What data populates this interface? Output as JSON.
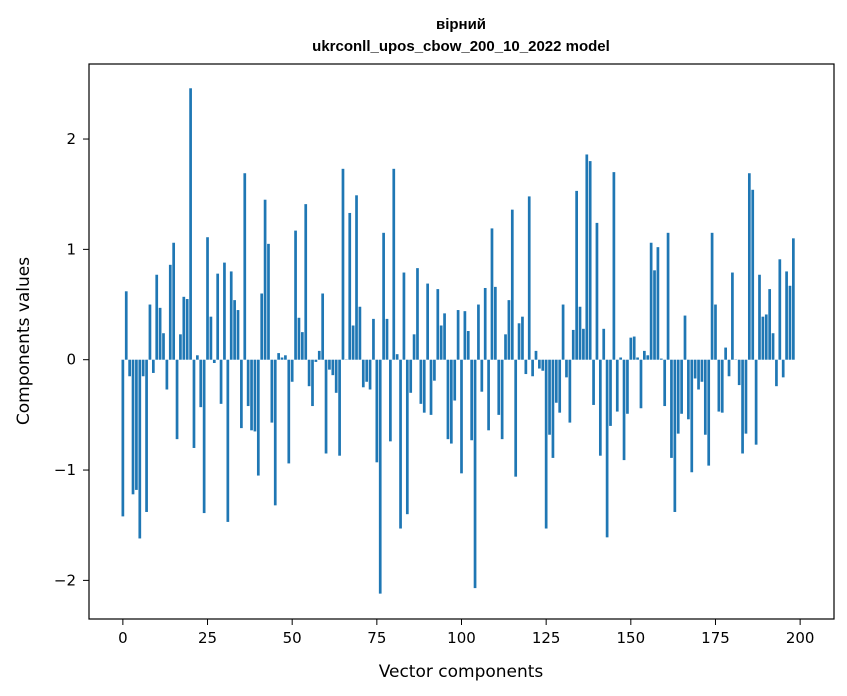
{
  "chart_data": {
    "type": "bar",
    "title_line1": "вірний",
    "title_line2": "ukrconll_upos_cbow_200_10_2022 model",
    "xlabel": "Vector components",
    "ylabel": "Components values",
    "xlim": [
      -10,
      210
    ],
    "ylim": [
      -2.35,
      2.68
    ],
    "x_ticks": [
      0,
      25,
      50,
      75,
      100,
      125,
      150,
      175,
      200
    ],
    "y_ticks": [
      -2,
      -1,
      0,
      1,
      2
    ],
    "y_tick_labels": [
      "−2",
      "−1",
      "0",
      "1",
      "2"
    ],
    "grid": false,
    "bar_color": "#1f77b4",
    "values": [
      -1.42,
      0.62,
      -0.15,
      -1.22,
      -1.18,
      -1.62,
      -0.15,
      -1.38,
      0.5,
      -0.12,
      0.77,
      0.47,
      0.24,
      -0.27,
      0.86,
      1.06,
      -0.72,
      0.23,
      0.57,
      0.55,
      2.46,
      -0.8,
      0.04,
      -0.43,
      -1.39,
      1.11,
      0.39,
      -0.03,
      0.78,
      -0.4,
      0.88,
      -1.47,
      0.8,
      0.54,
      0.45,
      -0.62,
      1.69,
      -0.42,
      -0.64,
      -0.65,
      -1.05,
      0.6,
      1.45,
      1.05,
      -0.57,
      -1.32,
      0.06,
      0.02,
      0.04,
      -0.94,
      -0.2,
      1.17,
      0.38,
      0.25,
      1.41,
      -0.24,
      -0.42,
      -0.02,
      0.08,
      0.6,
      -0.85,
      -0.09,
      -0.14,
      -0.3,
      -0.87,
      1.73,
      0.0,
      1.33,
      0.31,
      1.49,
      0.48,
      -0.25,
      -0.2,
      -0.27,
      0.37,
      -0.93,
      -2.12,
      1.15,
      0.37,
      -0.74,
      1.73,
      0.05,
      -1.53,
      0.79,
      -1.4,
      -0.3,
      0.23,
      0.83,
      -0.4,
      -0.48,
      0.69,
      -0.5,
      -0.19,
      0.64,
      0.31,
      0.42,
      -0.72,
      -0.76,
      -0.37,
      0.45,
      -1.03,
      0.44,
      0.26,
      -0.73,
      -2.07,
      0.5,
      -0.29,
      0.65,
      -0.64,
      1.19,
      0.66,
      -0.5,
      -0.72,
      0.23,
      0.54,
      1.36,
      -1.06,
      0.33,
      0.39,
      -0.13,
      1.48,
      -0.15,
      0.08,
      -0.08,
      -0.1,
      -1.53,
      -0.68,
      -0.89,
      -0.39,
      -0.48,
      0.5,
      -0.16,
      -0.57,
      0.27,
      1.53,
      0.48,
      0.28,
      1.86,
      1.8,
      -0.41,
      1.24,
      -0.87,
      0.28,
      -1.61,
      -0.6,
      1.7,
      -0.47,
      0.02,
      -0.91,
      -0.49,
      0.2,
      0.21,
      0.02,
      -0.44,
      0.08,
      0.04,
      1.06,
      0.81,
      1.02,
      0.01,
      -0.42,
      1.15,
      -0.89,
      -1.38,
      -0.67,
      -0.49,
      0.4,
      -0.54,
      -1.02,
      -0.17,
      -0.27,
      -0.2,
      -0.68,
      -0.96,
      1.15,
      0.5,
      -0.47,
      -0.48,
      0.11,
      -0.15,
      0.79,
      0.0,
      -0.23,
      -0.85,
      -0.67,
      1.69,
      1.54,
      -0.77,
      0.77,
      0.39,
      0.41,
      0.64,
      0.24,
      -0.24,
      0.91,
      -0.16,
      0.8,
      0.67,
      1.1
    ]
  }
}
